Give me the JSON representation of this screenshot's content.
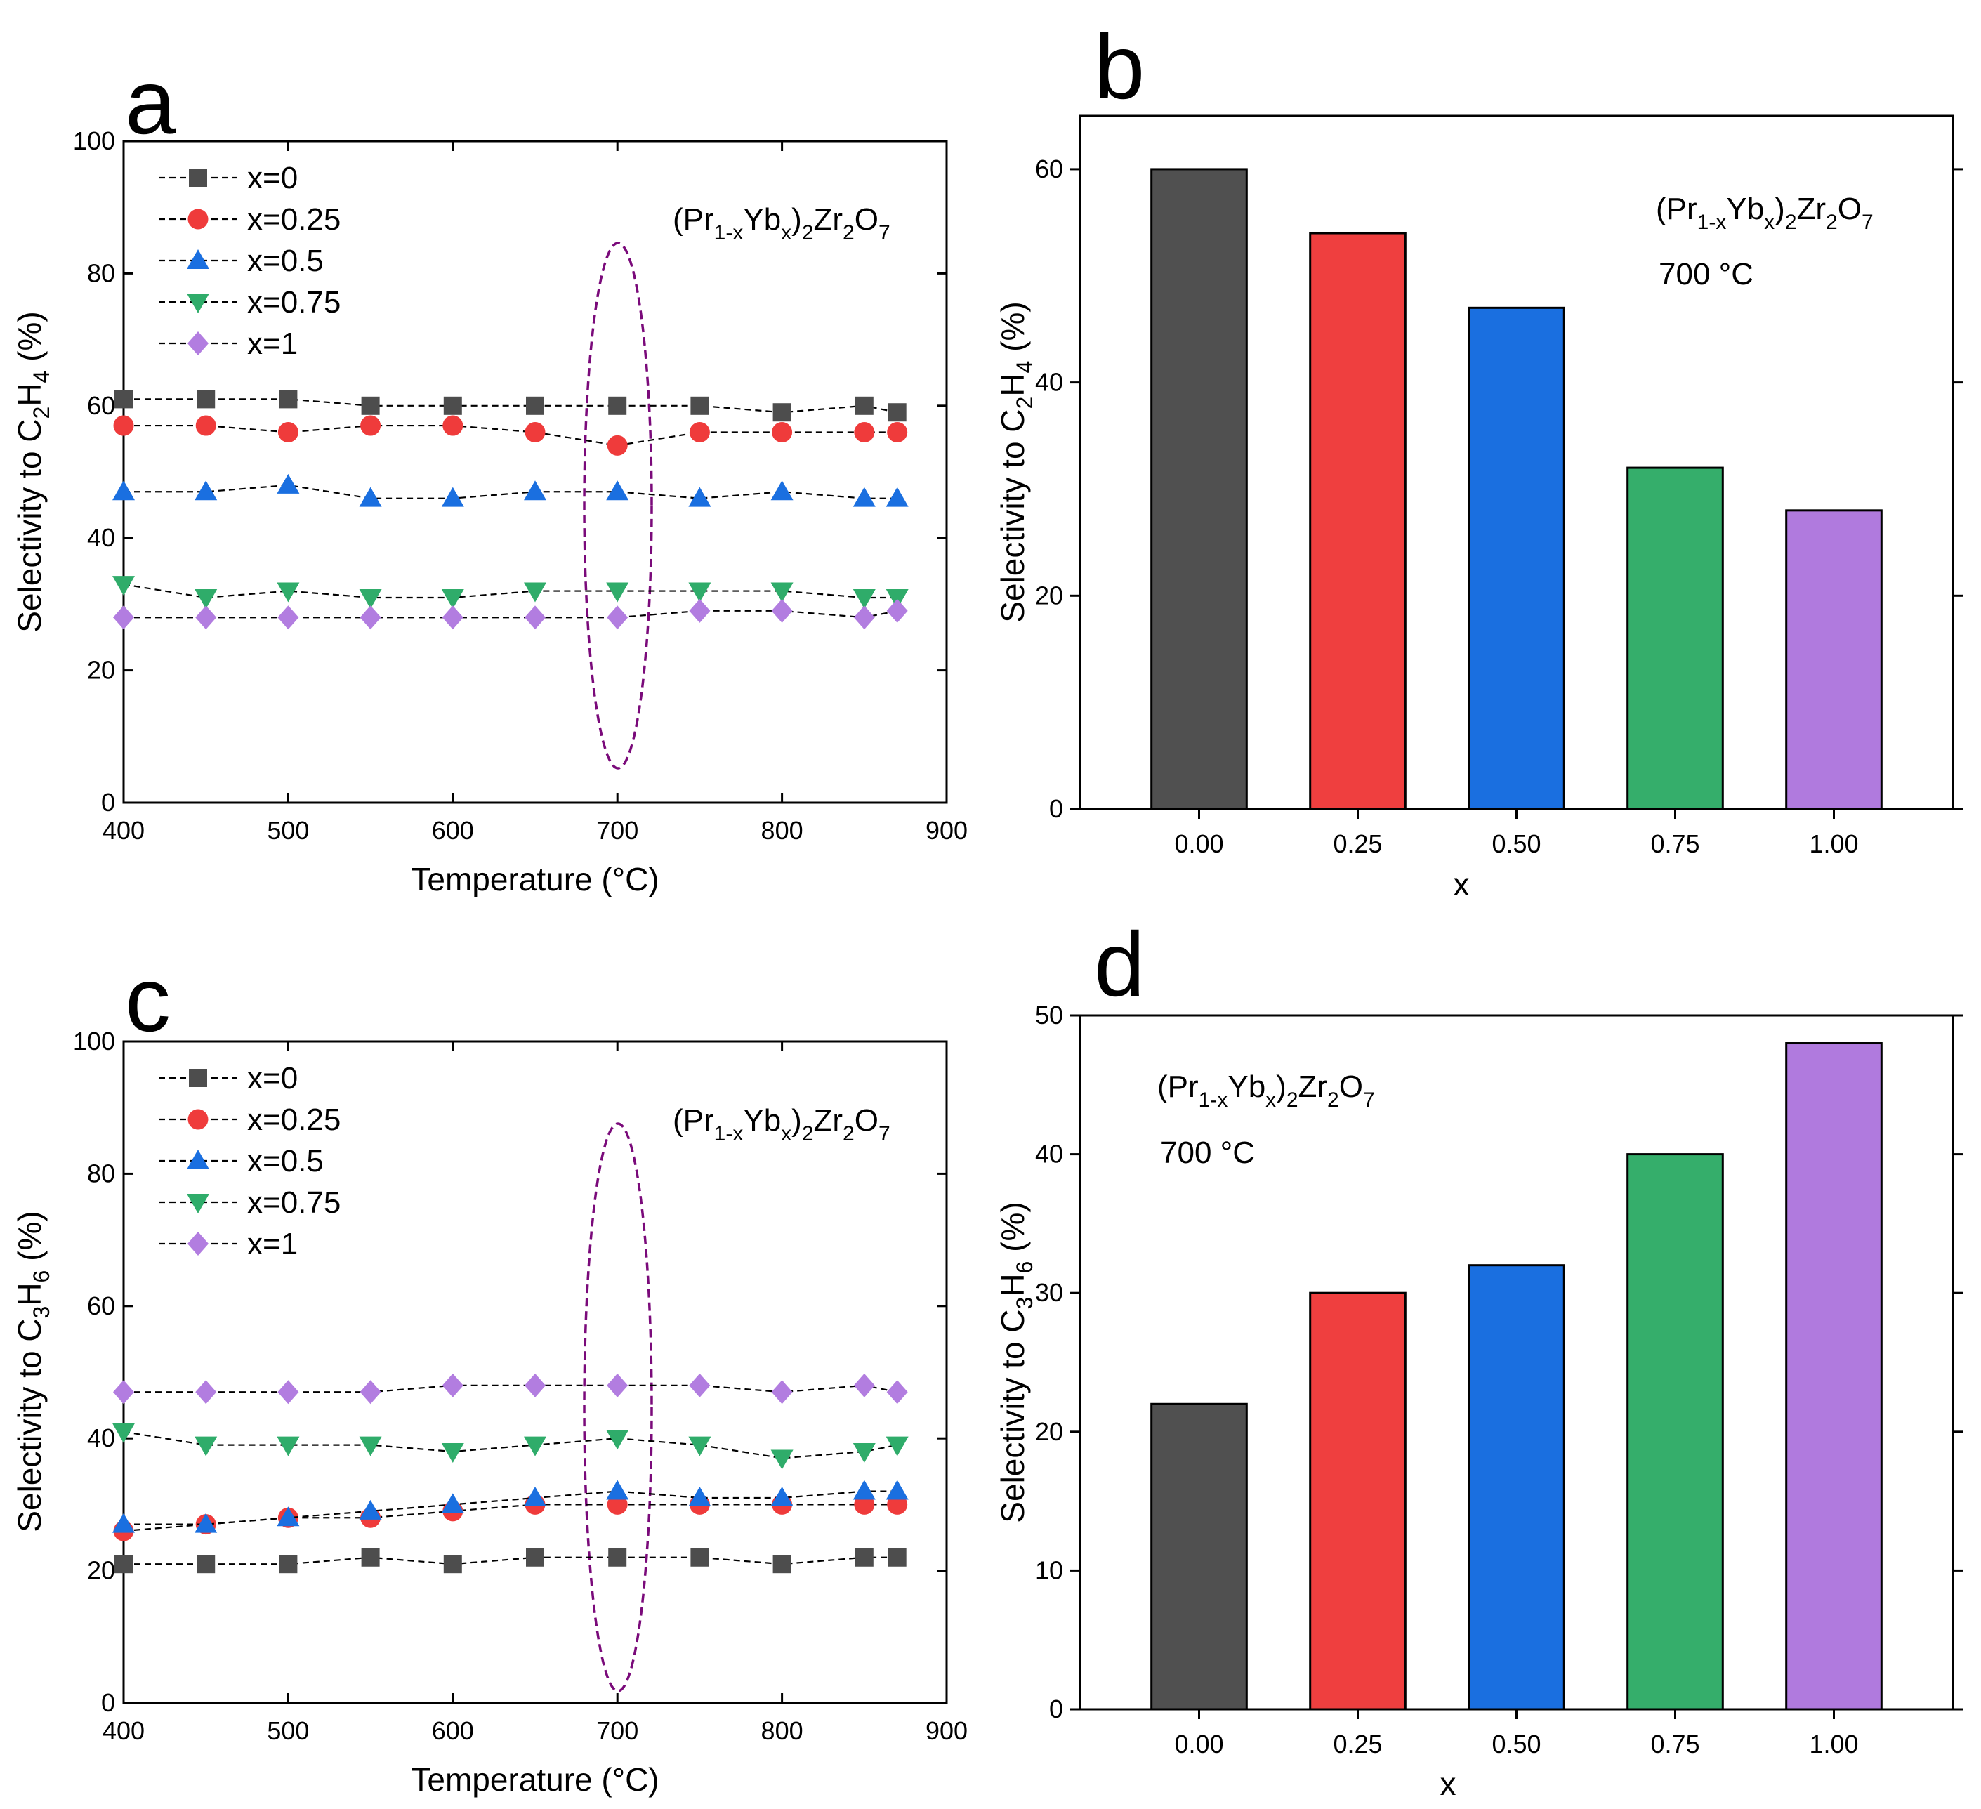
{
  "chart_data": [
    {
      "panel": "a",
      "type": "line",
      "xlabel": "Temperature (°C)",
      "ylabel": {
        "prefix": "Selectivity to C",
        "sub1": "2",
        "mid": "H",
        "sub2": "4",
        "suffix": " (%)"
      },
      "xlim": [
        400,
        900
      ],
      "ylim": [
        0,
        100
      ],
      "xticks": [
        "400",
        "500",
        "600",
        "700",
        "800",
        "900"
      ],
      "yticks": [
        "0",
        "20",
        "40",
        "60",
        "80",
        "100"
      ],
      "annotation": "(Pr1-xYbx)2Zr2O7",
      "highlight": "dashed ellipse around 700 °C",
      "x": [
        400,
        450,
        500,
        550,
        600,
        650,
        700,
        750,
        800,
        850,
        870
      ],
      "series": [
        {
          "name": "x=0",
          "marker": "square",
          "color": "#4d4d4d",
          "values": [
            61,
            61,
            61,
            60,
            60,
            60,
            60,
            60,
            59,
            60,
            59
          ]
        },
        {
          "name": "x=0.25",
          "marker": "circle",
          "color": "#ef3b3b",
          "values": [
            57,
            57,
            56,
            57,
            57,
            56,
            54,
            56,
            56,
            56,
            56
          ]
        },
        {
          "name": "x=0.5",
          "marker": "triangle-up",
          "color": "#1a6fe0",
          "values": [
            47,
            47,
            48,
            46,
            46,
            47,
            47,
            46,
            47,
            46,
            46
          ]
        },
        {
          "name": "x=0.75",
          "marker": "triangle-down",
          "color": "#2fac6a",
          "values": [
            33,
            31,
            32,
            31,
            31,
            32,
            32,
            32,
            32,
            31,
            31
          ]
        },
        {
          "name": "x=1",
          "marker": "diamond",
          "color": "#b27de0",
          "values": [
            28,
            28,
            28,
            28,
            28,
            28,
            28,
            29,
            29,
            28,
            29
          ]
        }
      ]
    },
    {
      "panel": "b",
      "type": "bar",
      "xlabel": "x",
      "ylabel": {
        "prefix": "Selectivity to C",
        "sub1": "2",
        "mid": "H",
        "sub2": "4",
        "suffix": " (%)"
      },
      "categories": [
        "0.00",
        "0.25",
        "0.50",
        "0.75",
        "1.00"
      ],
      "values": [
        60,
        54,
        47,
        32,
        28
      ],
      "colors": [
        "#505050",
        "#ef3f3f",
        "#1a6fe0",
        "#35ae6b",
        "#b07ade"
      ],
      "ylim": [
        0,
        65
      ],
      "yticks": [
        "0",
        "20",
        "40",
        "60"
      ],
      "annotation": "(Pr1-xYbx)2Zr2O7",
      "annotation2": "700 °C"
    },
    {
      "panel": "c",
      "type": "line",
      "xlabel": "Temperature (°C)",
      "ylabel": {
        "prefix": "Selectivity to C",
        "sub1": "3",
        "mid": "H",
        "sub2": "6",
        "suffix": " (%)"
      },
      "xlim": [
        400,
        900
      ],
      "ylim": [
        0,
        100
      ],
      "xticks": [
        "400",
        "500",
        "600",
        "700",
        "800",
        "900"
      ],
      "yticks": [
        "0",
        "20",
        "40",
        "60",
        "80",
        "100"
      ],
      "annotation": "(Pr1-xYbx)2Zr2O7",
      "highlight": "dashed ellipse around 700 °C",
      "x": [
        400,
        450,
        500,
        550,
        600,
        650,
        700,
        750,
        800,
        850,
        870
      ],
      "series": [
        {
          "name": "x=0",
          "marker": "square",
          "color": "#4d4d4d",
          "values": [
            21,
            21,
            21,
            22,
            21,
            22,
            22,
            22,
            21,
            22,
            22
          ]
        },
        {
          "name": "x=0.25",
          "marker": "circle",
          "color": "#ef3b3b",
          "values": [
            26,
            27,
            28,
            28,
            29,
            30,
            30,
            30,
            30,
            30,
            30
          ]
        },
        {
          "name": "x=0.5",
          "marker": "triangle-up",
          "color": "#1a6fe0",
          "values": [
            27,
            27,
            28,
            29,
            30,
            31,
            32,
            31,
            31,
            32,
            32
          ]
        },
        {
          "name": "x=0.75",
          "marker": "triangle-down",
          "color": "#2fac6a",
          "values": [
            41,
            39,
            39,
            39,
            38,
            39,
            40,
            39,
            37,
            38,
            39
          ]
        },
        {
          "name": "x=1",
          "marker": "diamond",
          "color": "#b27de0",
          "values": [
            47,
            47,
            47,
            47,
            48,
            48,
            48,
            48,
            47,
            48,
            47
          ]
        }
      ]
    },
    {
      "panel": "d",
      "type": "bar",
      "xlabel": "x",
      "ylabel": {
        "prefix": "Selectivity to C",
        "sub1": "3",
        "mid": "H",
        "sub2": "6",
        "suffix": " (%)"
      },
      "categories": [
        "0.00",
        "0.25",
        "0.50",
        "0.75",
        "1.00"
      ],
      "values": [
        22,
        30,
        32,
        40,
        48
      ],
      "colors": [
        "#505050",
        "#ef3f3f",
        "#1a6fe0",
        "#35ae6b",
        "#b07ade"
      ],
      "ylim": [
        0,
        50
      ],
      "yticks": [
        "0",
        "10",
        "20",
        "30",
        "40",
        "50"
      ],
      "annotation": "(Pr1-xYbx)2Zr2O7",
      "annotation2": "700 °C"
    }
  ],
  "formula_parts": {
    "open": "(Pr",
    "s1": "1-x",
    "yb": "Yb",
    "s2": "x",
    "close": ")",
    "s3": "2",
    "zr": "Zr",
    "s4": "2",
    "o": "O",
    "s5": "7"
  }
}
